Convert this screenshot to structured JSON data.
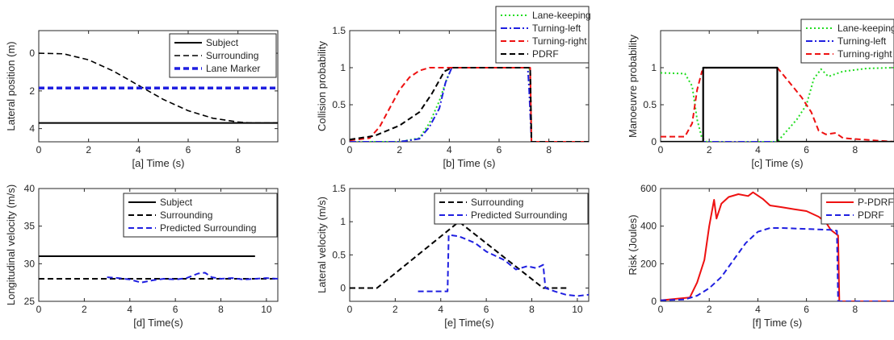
{
  "chart_data": [
    {
      "type": "line",
      "xlabel": "[a] Time (s)",
      "ylabel": "Lateral position (m)",
      "xlim": [
        0,
        9.6
      ],
      "ylim": [
        -1.2,
        4.7
      ],
      "y_reversed": true,
      "xticks": [
        0,
        2,
        4,
        6,
        8
      ],
      "yticks": [
        0,
        2,
        4
      ],
      "legend": "top-right",
      "series": [
        {
          "name": "Subject",
          "color": "#000000",
          "dash": "solid",
          "width": 2,
          "x": [
            0,
            9.6
          ],
          "y": [
            3.7,
            3.7
          ]
        },
        {
          "name": "Surrounding",
          "color": "#000000",
          "dash": "dashed",
          "width": 1.6,
          "x": [
            0,
            1,
            2,
            3,
            4,
            5,
            6,
            7,
            8,
            8.5,
            9,
            9.6
          ],
          "y": [
            0,
            0.03,
            0.35,
            0.95,
            1.7,
            2.45,
            3.05,
            3.45,
            3.65,
            3.7,
            3.7,
            3.7
          ]
        },
        {
          "name": "Lane Marker",
          "color": "#1f1fe0",
          "dash": "dashed",
          "width": 3.5,
          "x": [
            0,
            9.6
          ],
          "y": [
            1.85,
            1.85
          ]
        }
      ]
    },
    {
      "type": "line",
      "xlabel": "[b] Time (s)",
      "ylabel": "Collision probability",
      "xlim": [
        0,
        9.6
      ],
      "ylim": [
        0,
        1.5
      ],
      "xticks": [
        0,
        2,
        4,
        6,
        8
      ],
      "yticks": [
        0,
        0.5,
        1,
        1.5
      ],
      "legend": "top-right",
      "series": [
        {
          "name": "Lane-keeping",
          "color": "#22dd22",
          "dash": "dotted",
          "width": 2,
          "x": [
            0,
            2,
            2.8,
            3.2,
            3.6,
            3.9,
            4.1,
            7.2,
            7.25,
            7.3,
            9.6
          ],
          "y": [
            0,
            0,
            0.05,
            0.25,
            0.55,
            0.85,
            1,
            1,
            0.95,
            0,
            0
          ]
        },
        {
          "name": "Turning-left",
          "color": "#1f1fe0",
          "dash": "dashdot",
          "width": 2,
          "x": [
            0,
            2,
            2.8,
            3.2,
            3.6,
            3.85,
            4.1,
            7.15,
            7.2,
            7.3,
            9.6
          ],
          "y": [
            0,
            0,
            0.04,
            0.2,
            0.45,
            0.8,
            1,
            1,
            0.75,
            0,
            0
          ]
        },
        {
          "name": "Turning-right",
          "color": "#ee1111",
          "dash": "dashed",
          "width": 2,
          "x": [
            0,
            0.8,
            1.2,
            1.6,
            2.0,
            2.4,
            2.8,
            3.2,
            4.0,
            7.25,
            7.3,
            9.6
          ],
          "y": [
            0.02,
            0.05,
            0.2,
            0.45,
            0.7,
            0.87,
            0.96,
            1,
            1,
            1,
            0,
            0
          ]
        },
        {
          "name": "PDRF",
          "color": "#000000",
          "dash": "dashed",
          "width": 2,
          "x": [
            0,
            1,
            2,
            2.8,
            3.3,
            3.8,
            4.1,
            7.25,
            7.3,
            9.6
          ],
          "y": [
            0.03,
            0.08,
            0.22,
            0.4,
            0.65,
            0.95,
            1,
            1,
            0,
            0
          ]
        }
      ]
    },
    {
      "type": "line",
      "xlabel": "[c] Time (s)",
      "ylabel": "Manoeuvre probability",
      "xlim": [
        0,
        9.6
      ],
      "ylim": [
        0,
        1.5
      ],
      "xticks": [
        0,
        2,
        4,
        6,
        8
      ],
      "yticks": [
        0,
        0.5,
        1
      ],
      "legend": "top-right",
      "series": [
        {
          "name": "Lane-keeping",
          "color": "#22dd22",
          "dash": "dotted",
          "width": 2,
          "x": [
            0,
            1,
            1.3,
            1.5,
            1.7,
            1.9,
            4.8,
            5.2,
            5.6,
            6.0,
            6.3,
            6.6,
            6.9,
            7.5,
            8.5,
            9.6
          ],
          "y": [
            0.93,
            0.92,
            0.75,
            0.3,
            0.05,
            0,
            0,
            0.15,
            0.3,
            0.5,
            0.85,
            0.98,
            0.88,
            0.95,
            0.99,
            1
          ]
        },
        {
          "name": "Turning-left",
          "color": "#1f1fe0",
          "dash": "dashdot",
          "width": 2,
          "x": [
            0,
            9.6
          ],
          "y": [
            0,
            0
          ]
        },
        {
          "name": "Turning-right",
          "color": "#ee1111",
          "dash": "dashed",
          "width": 2,
          "x": [
            0,
            1,
            1.3,
            1.5,
            1.7,
            1.9,
            4.8,
            5.3,
            5.8,
            6.2,
            6.5,
            6.8,
            7.2,
            7.5,
            9.6
          ],
          "y": [
            0.07,
            0.07,
            0.25,
            0.7,
            0.95,
            1,
            1,
            0.8,
            0.6,
            0.4,
            0.15,
            0.1,
            0.12,
            0.05,
            0
          ]
        },
        {
          "name": "",
          "color": "#000000",
          "dash": "solid",
          "width": 2.2,
          "x": [
            0,
            1.75,
            1.75,
            4.8,
            4.8,
            9.6
          ],
          "y": [
            0,
            0,
            1,
            1,
            0,
            0
          ]
        }
      ]
    },
    {
      "type": "line",
      "xlabel": "[d] Time(s)",
      "ylabel": "Longitudinal velocity (m/s)",
      "xlim": [
        0,
        10.5
      ],
      "ylim": [
        25,
        40
      ],
      "xticks": [
        0,
        2,
        4,
        6,
        8,
        10
      ],
      "yticks": [
        25,
        30,
        35,
        40
      ],
      "legend": "top-right",
      "series": [
        {
          "name": "Subject",
          "color": "#000000",
          "dash": "solid",
          "width": 2,
          "x": [
            0,
            9.5
          ],
          "y": [
            31,
            31
          ]
        },
        {
          "name": "Surrounding",
          "color": "#000000",
          "dash": "dashed",
          "width": 2,
          "x": [
            0,
            10.5
          ],
          "y": [
            28,
            28
          ]
        },
        {
          "name": "Predicted Surrounding",
          "color": "#1f1fe0",
          "dash": "dashed",
          "width": 2,
          "x": [
            3,
            3.5,
            4,
            4.5,
            5,
            5.5,
            6,
            6.5,
            7,
            7.3,
            7.6,
            8,
            8.5,
            9,
            9.5,
            10,
            10.5
          ],
          "y": [
            28.2,
            28.1,
            27.9,
            27.5,
            27.8,
            28.0,
            27.9,
            28.1,
            28.7,
            28.8,
            28.2,
            28.0,
            28.1,
            27.9,
            28.0,
            28.1,
            28.0
          ]
        }
      ]
    },
    {
      "type": "line",
      "xlabel": "[e] Time(s)",
      "ylabel": "Lateral velocity (m/s)",
      "xlim": [
        0,
        10.5
      ],
      "ylim": [
        -0.2,
        1.5
      ],
      "xticks": [
        0,
        2,
        4,
        6,
        8,
        10
      ],
      "yticks": [
        0,
        0.5,
        1,
        1.5
      ],
      "legend": "top-right",
      "series": [
        {
          "name": "Surrounding",
          "color": "#000000",
          "dash": "dashed",
          "width": 2,
          "x": [
            0,
            1.2,
            4.8,
            8.5,
            8.6,
            9.6
          ],
          "y": [
            0,
            0,
            1,
            0,
            0,
            0
          ]
        },
        {
          "name": "Predicted Surrounding",
          "color": "#1f1fe0",
          "dash": "dashed",
          "width": 2,
          "x": [
            3,
            4.3,
            4.35,
            4.8,
            5.5,
            6.0,
            6.8,
            7.3,
            7.8,
            8.2,
            8.5,
            8.6,
            9.0,
            9.5,
            10.0,
            10.5
          ],
          "y": [
            -0.05,
            -0.05,
            0.8,
            0.78,
            0.68,
            0.55,
            0.42,
            0.28,
            0.33,
            0.3,
            0.35,
            0.0,
            -0.05,
            -0.1,
            -0.12,
            -0.1
          ]
        }
      ]
    },
    {
      "type": "line",
      "xlabel": "[f] Time (s)",
      "ylabel": "Risk (Joules)",
      "xlim": [
        0,
        9.6
      ],
      "ylim": [
        0,
        600
      ],
      "xticks": [
        0,
        2,
        4,
        6,
        8
      ],
      "yticks": [
        0,
        200,
        400,
        600
      ],
      "legend": "top-right",
      "series": [
        {
          "name": "P-PDRF",
          "color": "#ee1111",
          "dash": "solid",
          "width": 2,
          "x": [
            0,
            1.2,
            1.5,
            1.8,
            2.0,
            2.2,
            2.3,
            2.5,
            2.8,
            3.2,
            3.6,
            3.8,
            4.2,
            4.5,
            5.0,
            5.5,
            6.0,
            6.5,
            6.8,
            7.0,
            7.2,
            7.3,
            7.35,
            9.6
          ],
          "y": [
            5,
            20,
            100,
            220,
            400,
            540,
            440,
            520,
            555,
            570,
            560,
            580,
            545,
            510,
            500,
            490,
            480,
            450,
            420,
            380,
            360,
            350,
            0,
            0
          ]
        },
        {
          "name": "PDRF",
          "color": "#1f1fe0",
          "dash": "dashed",
          "width": 2,
          "x": [
            0,
            1,
            1.5,
            2.0,
            2.5,
            3.0,
            3.5,
            4.0,
            4.5,
            5.0,
            6.0,
            7.0,
            7.25,
            7.3,
            9.6
          ],
          "y": [
            5,
            10,
            30,
            70,
            130,
            220,
            310,
            370,
            390,
            390,
            385,
            380,
            375,
            0,
            0
          ]
        }
      ]
    }
  ]
}
